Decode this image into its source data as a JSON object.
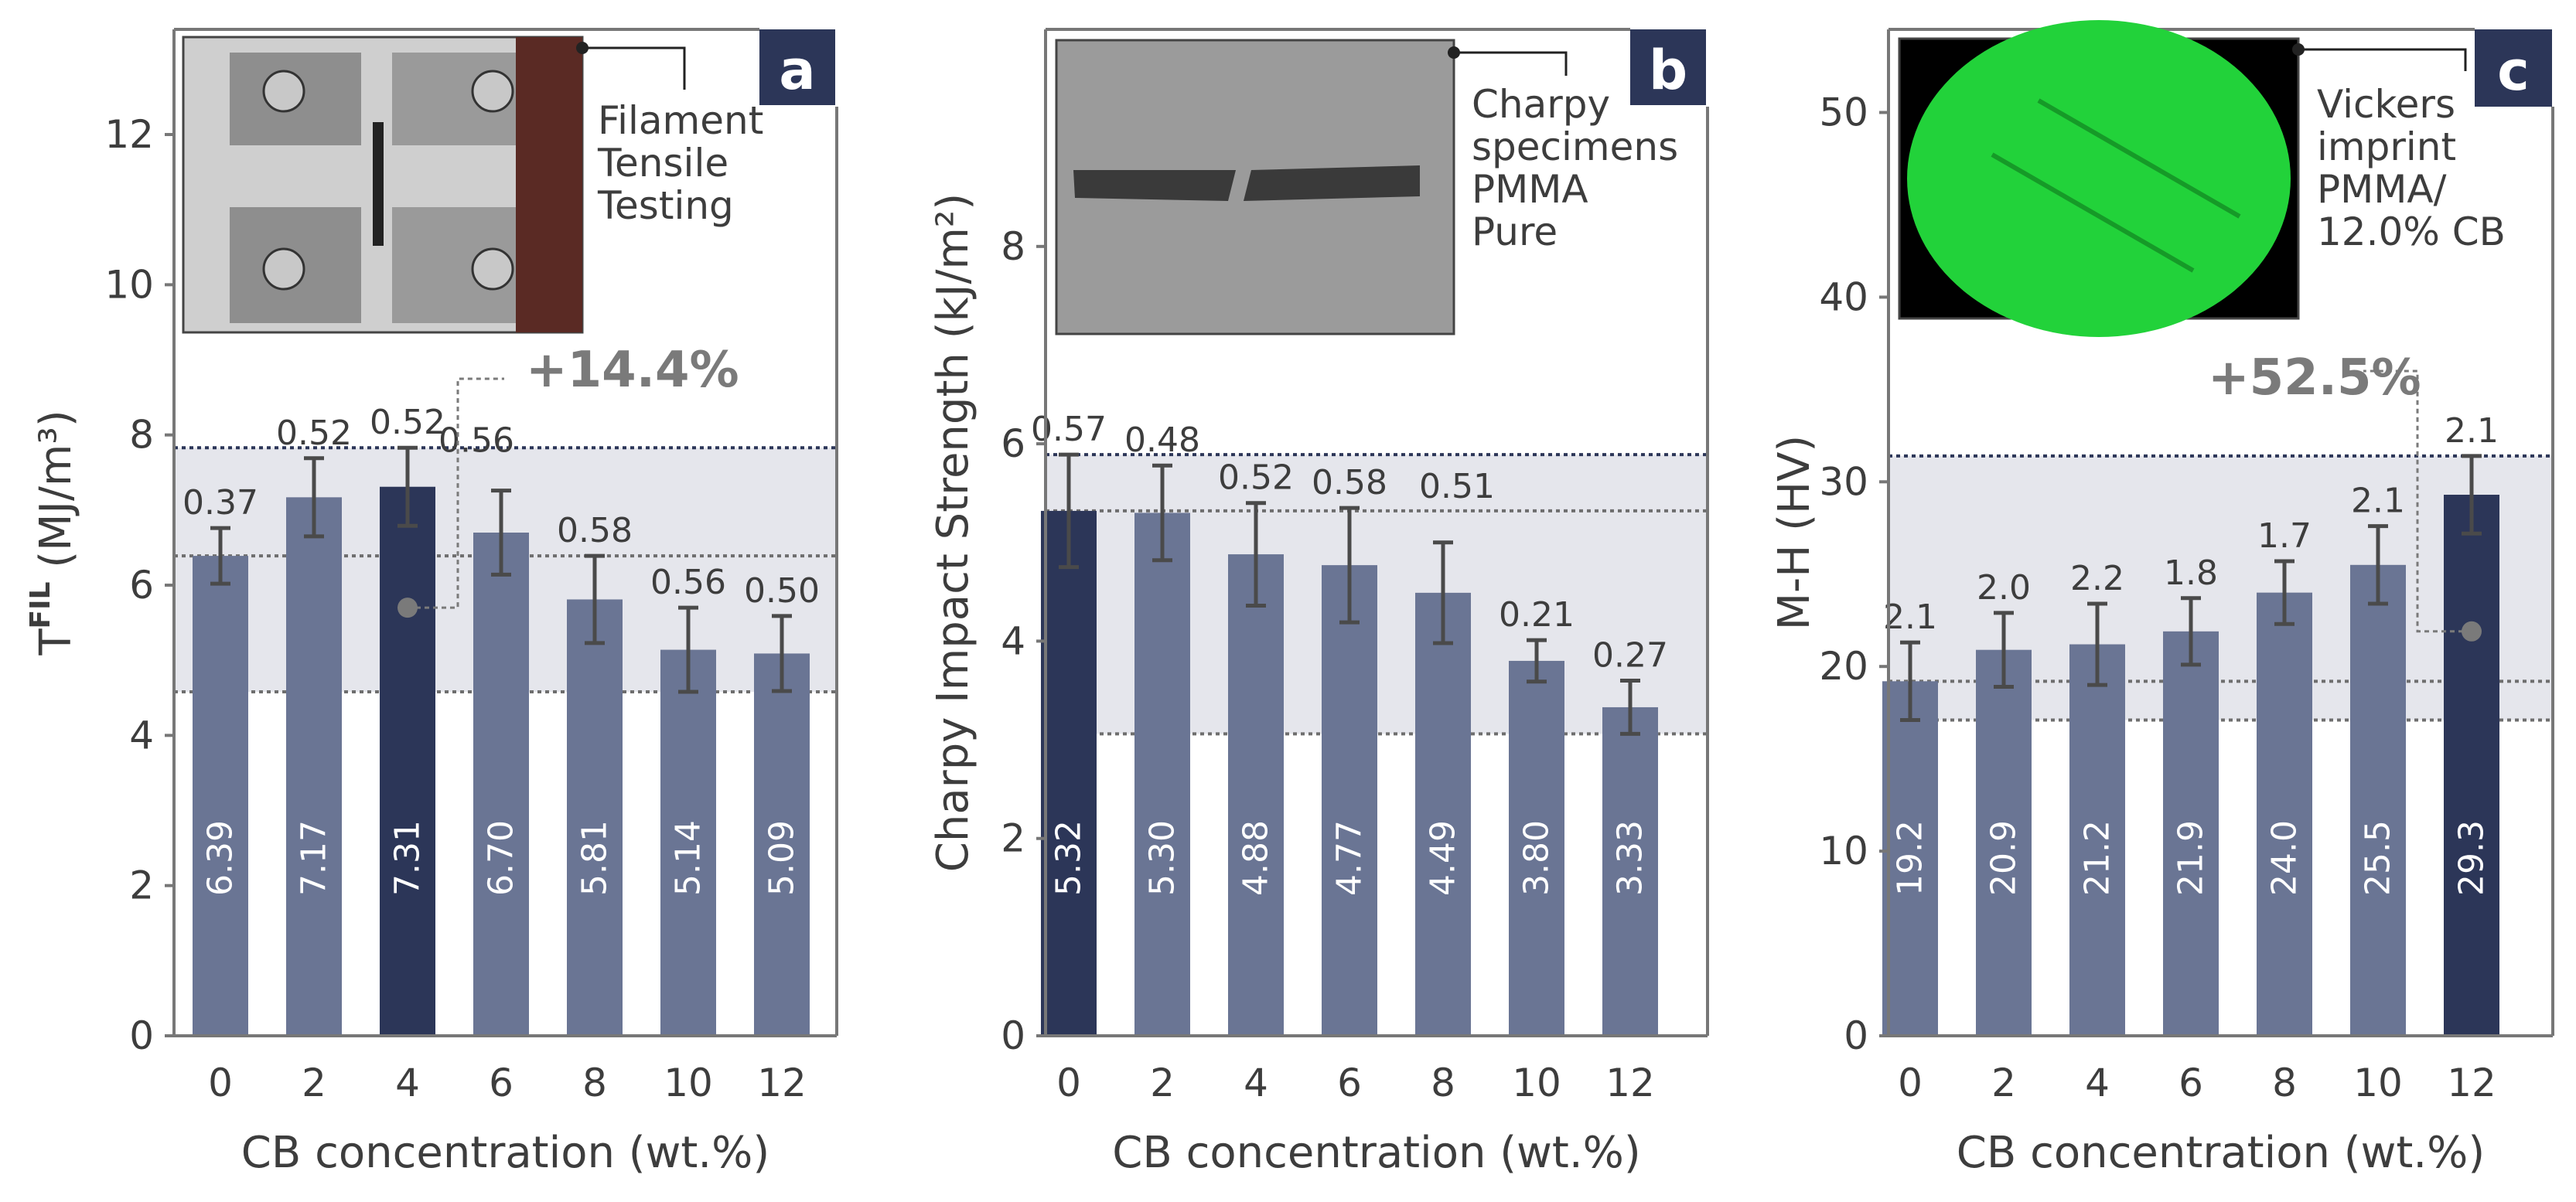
{
  "colors": {
    "bar": "#6a7594",
    "bar_highlight": "#2c3658",
    "band": "#e5e6ec",
    "axis": "#777777",
    "text": "#3d3d3d",
    "label_inside": "#ffffff",
    "errorbar": "#4a4a4a",
    "ref_dark": "#2c3658",
    "ref_gray": "#6e6e6e",
    "annotation": "#7a7a7a",
    "badge_bg": "#2c3658",
    "badge_text": "#ffffff"
  },
  "chart_data": [
    {
      "type": "bar",
      "panel": "a",
      "title": "",
      "xlabel": "CB concentration (wt.%)",
      "ylabel_main": "T",
      "ylabel_sup": "FIL",
      "ylabel_units": " (MJ/m³)",
      "ylim": [
        0,
        13.4
      ],
      "yticks": [
        0,
        2,
        4,
        6,
        8,
        10,
        12
      ],
      "categories": [
        "0",
        "2",
        "4",
        "6",
        "8",
        "10",
        "12"
      ],
      "values": [
        6.39,
        7.17,
        7.31,
        6.7,
        5.81,
        5.14,
        5.09
      ],
      "value_labels": [
        "6.39",
        "7.17",
        "7.31",
        "6.70",
        "5.81",
        "5.14",
        "5.09"
      ],
      "errors": [
        0.37,
        0.52,
        0.52,
        0.56,
        0.58,
        0.56,
        0.5
      ],
      "error_labels": [
        "0.37",
        "0.52",
        "0.52",
        "0.56",
        "0.58",
        "0.56",
        "0.50"
      ],
      "highlight_index": 2,
      "band": [
        4.58,
        7.83
      ],
      "ref_lines": [
        7.83,
        6.39,
        4.58
      ],
      "improvement_label": "+14.4%",
      "marker_value": 5.7,
      "photo_caption": [
        "Filament",
        "Tensile",
        "Testing"
      ],
      "badge": "a"
    },
    {
      "type": "bar",
      "panel": "b",
      "title": "",
      "xlabel": "CB concentration (wt.%)",
      "ylabel_main": "Charpy Impact Strength (kJ/m²)",
      "ylabel_sup": "",
      "ylabel_units": "",
      "ylim": [
        0,
        10.2
      ],
      "yticks": [
        0,
        2,
        4,
        6,
        8
      ],
      "categories": [
        "0",
        "2",
        "4",
        "6",
        "8",
        "10",
        "12"
      ],
      "values": [
        5.32,
        5.3,
        4.88,
        4.77,
        4.49,
        3.8,
        3.33
      ],
      "value_labels": [
        "5.32",
        "5.30",
        "4.88",
        "4.77",
        "4.49",
        "3.80",
        "3.33"
      ],
      "errors": [
        0.57,
        0.48,
        0.52,
        0.58,
        0.51,
        0.21,
        0.27
      ],
      "error_labels": [
        "0.57",
        "0.48",
        "0.52",
        "0.58",
        "0.51",
        "0.21",
        "0.27"
      ],
      "highlight_index": 0,
      "band": [
        3.06,
        5.89
      ],
      "ref_lines": [
        5.89,
        5.32,
        3.06
      ],
      "improvement_label": "",
      "photo_caption": [
        "Charpy",
        "specimens",
        "PMMA",
        "Pure"
      ],
      "badge": "b"
    },
    {
      "type": "bar",
      "panel": "c",
      "title": "",
      "xlabel": "CB concentration (wt.%)",
      "ylabel_main": "M-H (HV)",
      "ylabel_sup": "",
      "ylabel_units": "",
      "ylim": [
        0,
        54.5
      ],
      "yticks": [
        0,
        10,
        20,
        30,
        40,
        50
      ],
      "categories": [
        "0",
        "2",
        "4",
        "6",
        "8",
        "10",
        "12"
      ],
      "values": [
        19.2,
        20.9,
        21.2,
        21.9,
        24.0,
        25.5,
        29.3
      ],
      "value_labels": [
        "19.2",
        "20.9",
        "21.2",
        "21.9",
        "24.0",
        "25.5",
        "29.3"
      ],
      "errors": [
        2.1,
        2.0,
        2.2,
        1.8,
        1.7,
        2.1,
        2.1
      ],
      "error_labels": [
        "2.1",
        "2.0",
        "2.2",
        "1.8",
        "1.7",
        "2.1",
        "2.1"
      ],
      "highlight_index": 6,
      "band": [
        17.1,
        31.4
      ],
      "ref_lines": [
        31.4,
        19.2,
        17.1
      ],
      "improvement_label": "+52.5%",
      "marker_value": 21.9,
      "photo_caption": [
        "Vickers",
        "imprint",
        "PMMA/",
        "12.0% CB"
      ],
      "badge": "c"
    }
  ]
}
